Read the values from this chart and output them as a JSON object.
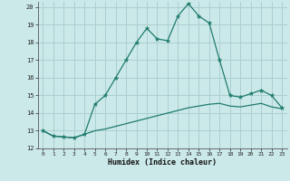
{
  "xlabel": "Humidex (Indice chaleur)",
  "xlim": [
    -0.5,
    23.5
  ],
  "ylim": [
    12,
    20.3
  ],
  "yticks": [
    12,
    13,
    14,
    15,
    16,
    17,
    18,
    19,
    20
  ],
  "xticks": [
    0,
    1,
    2,
    3,
    4,
    5,
    6,
    7,
    8,
    9,
    10,
    11,
    12,
    13,
    14,
    15,
    16,
    17,
    18,
    19,
    20,
    21,
    22,
    23
  ],
  "bg_color": "#cce9e9",
  "line_color": "#1e7b6e",
  "grid_color": "#aacfcf",
  "line1_x": [
    0,
    1,
    2,
    3,
    4,
    5,
    6,
    7,
    8,
    9,
    10,
    11,
    12,
    13,
    14,
    15,
    16,
    17,
    18,
    19,
    20,
    21,
    22,
    23
  ],
  "line1_y": [
    13.0,
    12.7,
    12.65,
    12.6,
    12.8,
    14.5,
    15.0,
    16.0,
    17.0,
    18.0,
    18.8,
    18.2,
    18.1,
    19.5,
    20.2,
    19.5,
    19.1,
    17.0,
    15.0,
    14.9,
    15.1,
    15.3,
    15.0,
    14.3
  ],
  "line2_x": [
    0,
    1,
    2,
    3,
    4,
    5,
    6,
    7,
    8,
    9,
    10,
    11,
    12,
    13,
    14,
    15,
    16,
    17,
    18,
    19,
    20,
    21,
    22,
    23
  ],
  "line2_y": [
    13.0,
    12.7,
    12.65,
    12.6,
    12.8,
    13.0,
    13.1,
    13.25,
    13.4,
    13.55,
    13.7,
    13.85,
    14.0,
    14.15,
    14.3,
    14.4,
    14.5,
    14.55,
    14.4,
    14.35,
    14.45,
    14.55,
    14.35,
    14.25
  ]
}
